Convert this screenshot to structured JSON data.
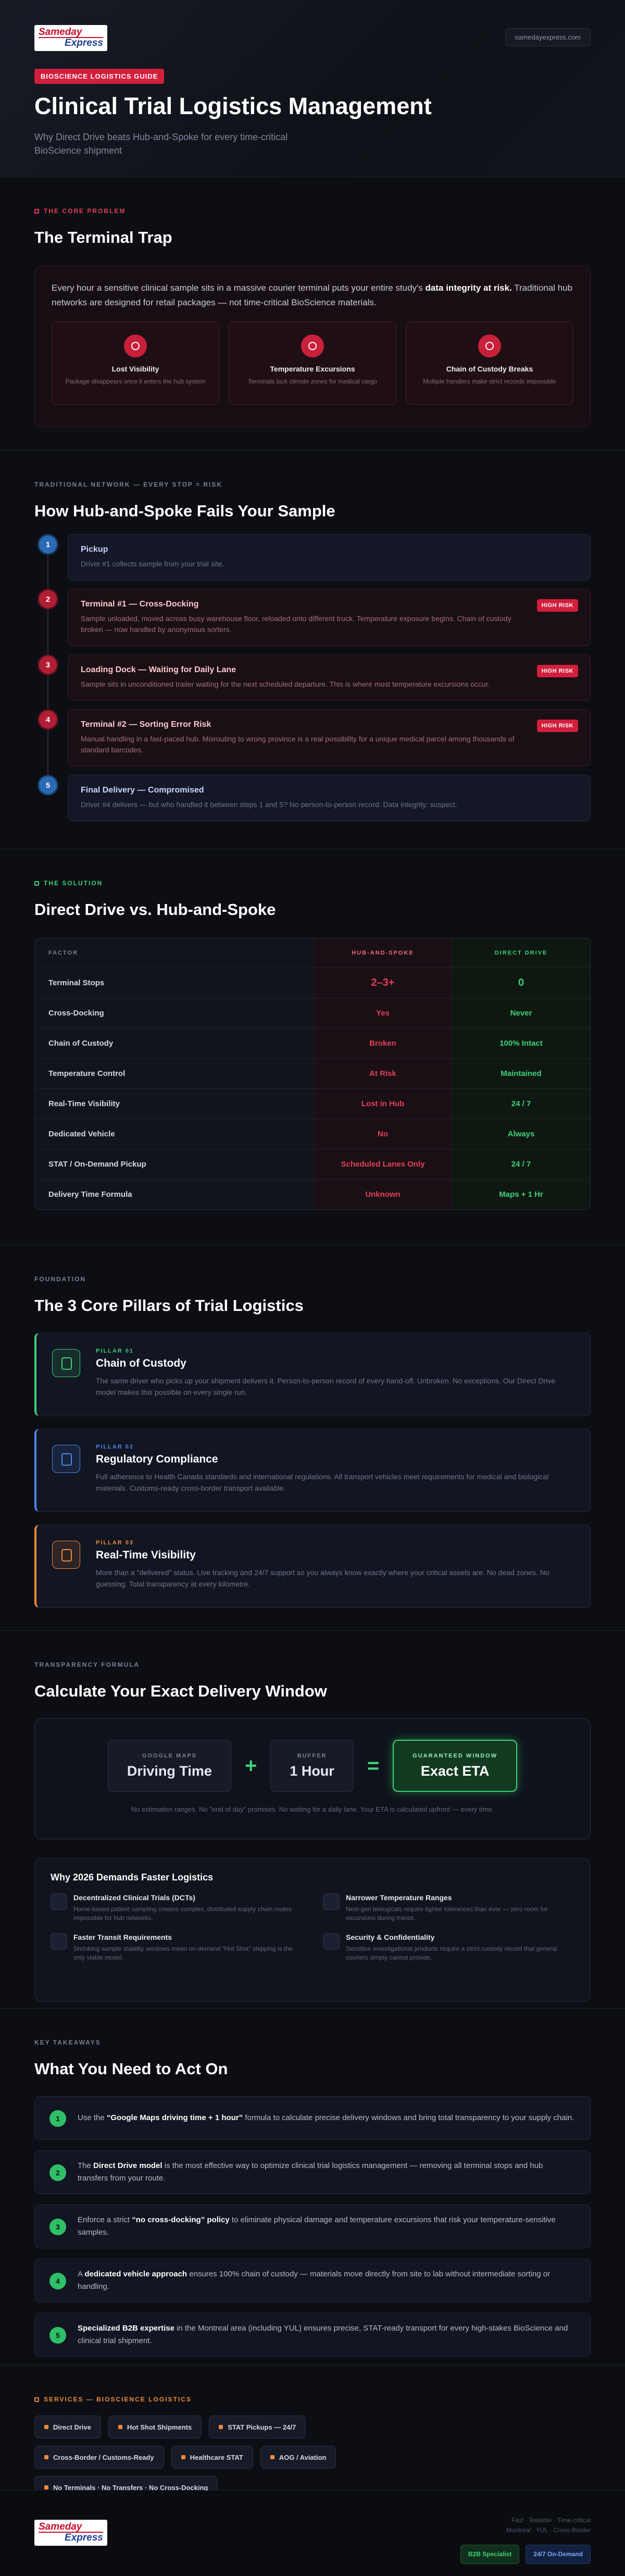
{
  "header": {
    "logo": {
      "line1": "Sameday",
      "line2": "Express"
    },
    "url": "samedayexpress.com",
    "badge": "BIOSCIENCE LOGISTICS GUIDE",
    "title": "Clinical Trial Logistics Management",
    "subtitle": "Why Direct Drive beats Hub-and-Spoke for every time-critical BioScience shipment"
  },
  "problem": {
    "eyebrow": "THE CORE PROBLEM",
    "heading": "The Terminal Trap",
    "text": [
      {
        "t": "Every hour a sensitive clinical sample sits in a massive courier terminal puts your entire study's "
      },
      {
        "t": "data integrity at risk.",
        "b": true
      },
      {
        "t": " Traditional hub networks are designed for retail packages — not time-critical BioScience materials."
      }
    ],
    "cards": [
      {
        "title": "Lost Visibility",
        "text": "Package disappears once it enters the hub system"
      },
      {
        "title": "Temperature Excursions",
        "text": "Terminals lack climate zones for medical cargo"
      },
      {
        "title": "Chain of Custody Breaks",
        "text": "Multiple handlers make strict records impossible"
      }
    ]
  },
  "hub": {
    "eyebrow": "TRADITIONAL NETWORK — EVERY STOP = RISK",
    "heading": "How Hub-and-Spoke Fails Your Sample",
    "steps": [
      {
        "num": "1",
        "title": "Pickup",
        "text": "Driver #1 collects sample from your trial site."
      },
      {
        "num": "2",
        "title": "Terminal #1 — Cross-Docking",
        "text": "Sample unloaded, moved across busy warehouse floor, reloaded onto different truck. Temperature exposure begins. Chain of custody broken — now handled by anonymous sorters.",
        "tag": "HIGH RISK"
      },
      {
        "num": "3",
        "title": "Loading Dock — Waiting for Daily Lane",
        "text": "Sample sits in unconditioned trailer waiting for the next scheduled departure. This is where most temperature excursions occur.",
        "tag": "HIGH RISK"
      },
      {
        "num": "4",
        "title": "Terminal #2 — Sorting Error Risk",
        "text": "Manual handling in a fast-paced hub. Misrouting to wrong province is a real possibility for a unique medical parcel among thousands of standard barcodes.",
        "tag": "HIGH RISK"
      },
      {
        "num": "5",
        "title": "Final Delivery — Compromised",
        "text": "Driver #4 delivers — but who handled it between steps 1 and 5? No person-to-person record. Data integrity: suspect."
      }
    ]
  },
  "solution": {
    "eyebrow": "THE SOLUTION",
    "heading": "Direct Drive vs. Hub-and-Spoke",
    "table": {
      "columns": [
        "FACTOR",
        "HUB-AND-SPOKE",
        "DIRECT DRIVE"
      ],
      "rows": [
        [
          "Terminal Stops",
          "2–3+",
          "0"
        ],
        [
          "Cross-Docking",
          "Yes",
          "Never"
        ],
        [
          "Chain of Custody",
          "Broken",
          "100% Intact"
        ],
        [
          "Temperature Control",
          "At Risk",
          "Maintained"
        ],
        [
          "Real-Time Visibility",
          "Lost in Hub",
          "24 / 7"
        ],
        [
          "Dedicated Vehicle",
          "No",
          "Always"
        ],
        [
          "STAT / On-Demand Pickup",
          "Scheduled Lanes Only",
          "24 / 7"
        ],
        [
          "Delivery Time Formula",
          "Unknown",
          "Maps + 1 Hr"
        ]
      ]
    }
  },
  "foundation": {
    "eyebrow": "FOUNDATION",
    "heading": "The 3 Core Pillars of Trial Logistics",
    "pillars": [
      {
        "label": "PILLAR 01",
        "title": "Chain of Custody",
        "text": "The same driver who picks up your shipment delivers it. Person-to-person record of every hand-off. Unbroken. No exceptions. Our Direct Drive model makes this possible on every single run.",
        "color": "#3fd17a"
      },
      {
        "label": "PILLAR 02",
        "title": "Regulatory Compliance",
        "text": "Full adherence to Health Canada standards and international regulations. All transport vehicles meet requirements for medical and biological materials. Customs-ready cross-border transport available.",
        "color": "#4f86f0"
      },
      {
        "label": "PILLAR 03",
        "title": "Real-Time Visibility",
        "text": "More than a \"delivered\" status. Live tracking and 24/7 support so you always know exactly where your critical assets are. No dead zones. No guessing. Total transparency at every kilometre.",
        "color": "#f08a3c"
      }
    ]
  },
  "formula": {
    "eyebrow": "TRANSPARENCY FORMULA",
    "heading": "Calculate Your Exact Delivery Window",
    "parts": [
      {
        "label": "GOOGLE MAPS",
        "value": "Driving Time"
      },
      {
        "label": "BUFFER",
        "value": "1 Hour"
      },
      {
        "label": "GUARANTEED WINDOW",
        "value": "Exact ETA"
      }
    ],
    "operators": [
      "+",
      "="
    ],
    "note": "No estimation ranges. No \"end of day\" promises. No waiting for a daily lane. Your ETA is calculated upfront — every time.",
    "why": {
      "heading": "Why 2026 Demands Faster Logistics",
      "items": [
        {
          "title": "Decentralized Clinical Trials (DCTs)",
          "text": "Home-based patient sampling creates complex, distributed supply chain routes impossible for hub networks."
        },
        {
          "title": "Narrower Temperature Ranges",
          "text": "Next-gen biologicals require tighter tolerances than ever — zero room for excursions during transit."
        },
        {
          "title": "Faster Transit Requirements",
          "text": "Shrinking sample stability windows mean on-demand \"Hot Shot\" shipping is the only viable model."
        },
        {
          "title": "Security & Confidentiality",
          "text": "Sensitive investigational products require a strict custody record that general couriers simply cannot provide."
        }
      ]
    }
  },
  "takeaways": {
    "eyebrow": "KEY TAKEAWAYS",
    "heading": "What You Need to Act On",
    "items": [
      {
        "num": "1",
        "text": [
          {
            "t": "Use the "
          },
          {
            "t": "“Google Maps driving time + 1 hour”",
            "b": true
          },
          {
            "t": " formula to calculate precise delivery windows and bring total transparency to your supply chain."
          }
        ]
      },
      {
        "num": "2",
        "text": [
          {
            "t": "The "
          },
          {
            "t": "Direct Drive model",
            "b": true
          },
          {
            "t": " is the most effective way to optimize clinical trial logistics management — removing all terminal stops and hub transfers from your route."
          }
        ]
      },
      {
        "num": "3",
        "text": [
          {
            "t": "Enforce a strict "
          },
          {
            "t": "“no cross-docking” policy",
            "b": true
          },
          {
            "t": " to eliminate physical damage and temperature excursions that risk your temperature-sensitive samples."
          }
        ]
      },
      {
        "num": "4",
        "text": [
          {
            "t": "A "
          },
          {
            "t": "dedicated vehicle approach",
            "b": true
          },
          {
            "t": " ensures 100% chain of custody — materials move directly from site to lab without intermediate sorting or handling."
          }
        ]
      },
      {
        "num": "5",
        "text": [
          {
            "t": "Specialized B2B expertise",
            "b": true
          },
          {
            "t": " in the Montreal area (including YUL) ensures precise, STAT-ready transport for every high-stakes BioScience and clinical trial shipment."
          }
        ]
      }
    ]
  },
  "services": {
    "eyebrow": "SERVICES — BIOSCIENCE LOGISTICS",
    "tags": [
      "Direct Drive",
      "Hot Shot Shipments",
      "STAT Pickups — 24/7",
      "Cross-Border / Customs-Ready",
      "Healthcare STAT",
      "AOG / Aviation",
      "No Terminals · No Transfers · No Cross-Docking"
    ]
  },
  "footer": {
    "logo": {
      "line1": "Sameday",
      "line2": "Express"
    },
    "lines": [
      "Fast · Reliable · Time-critical",
      "Montreal · YUL · Cross-Border"
    ],
    "badges": [
      "B2B Specialist",
      "24/7 On-Demand"
    ]
  }
}
